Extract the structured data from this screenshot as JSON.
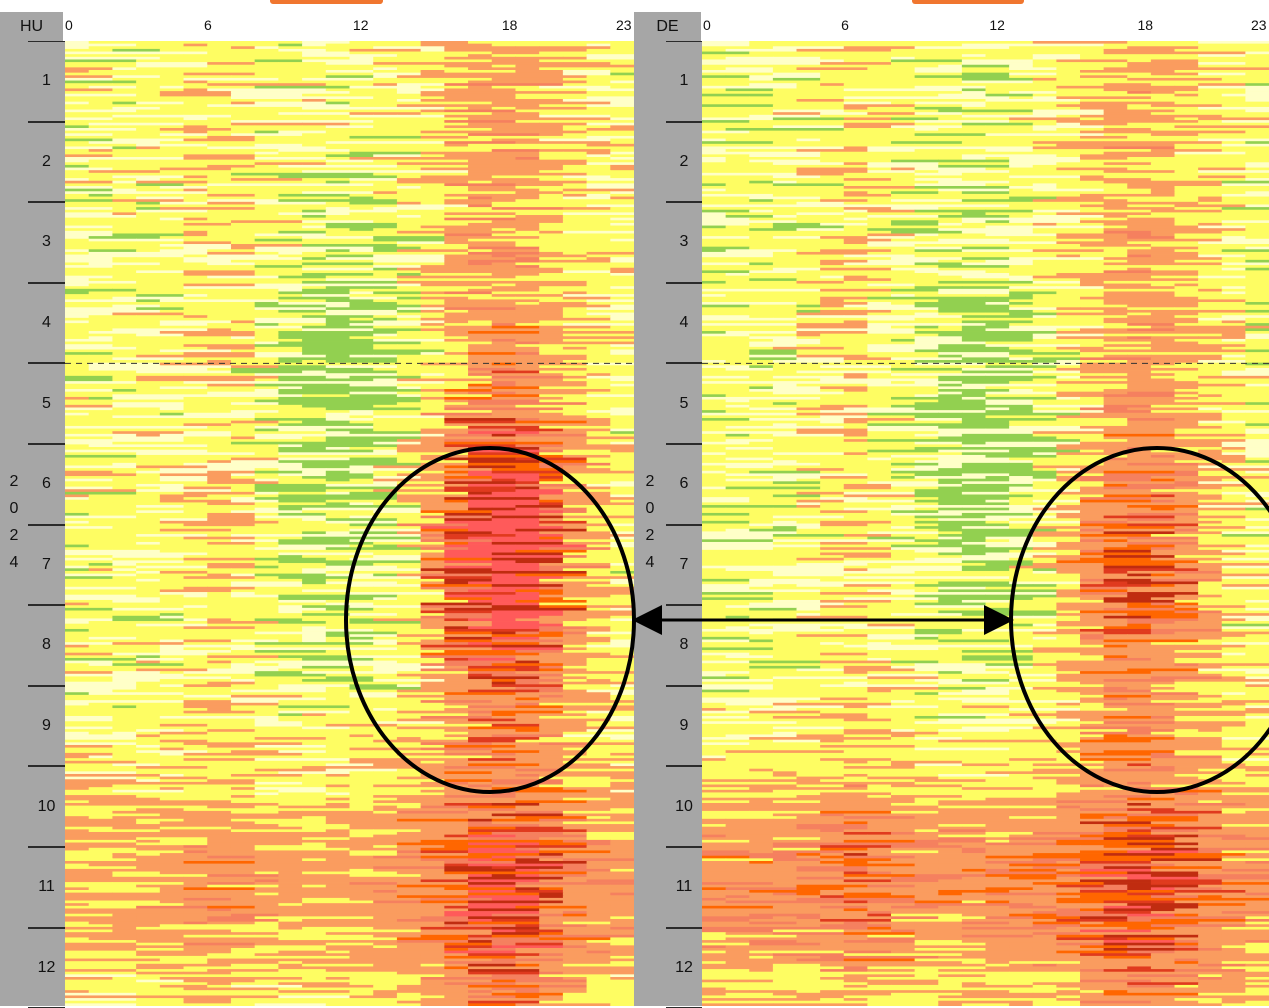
{
  "chart_data": [
    {
      "type": "heatmap",
      "country": "HU",
      "year": "2024",
      "x_tick_labels": [
        "0",
        "6",
        "12",
        "18",
        "23"
      ],
      "x_range": [
        0,
        23
      ],
      "months": [
        "1",
        "2",
        "3",
        "4",
        "5",
        "6",
        "7",
        "8",
        "9",
        "10",
        "11",
        "12"
      ],
      "color_levels": {
        "green": "#92d050",
        "light": "#ffffc8",
        "yellow": "#fefd62",
        "orange": "#fa9c5f",
        "salmon": "#f5805f",
        "deep_orange": "#ff6600",
        "red": "#e03a1e",
        "dark_red": "#c02c10",
        "pink": "#ff5a5a"
      }
    },
    {
      "type": "heatmap",
      "country": "DE",
      "year": "2024",
      "x_tick_labels": [
        "0",
        "6",
        "12",
        "18",
        "23"
      ],
      "x_range": [
        0,
        23
      ],
      "months": [
        "1",
        "2",
        "3",
        "4",
        "5",
        "6",
        "7",
        "8",
        "9",
        "10",
        "11",
        "12"
      ]
    }
  ]
}
